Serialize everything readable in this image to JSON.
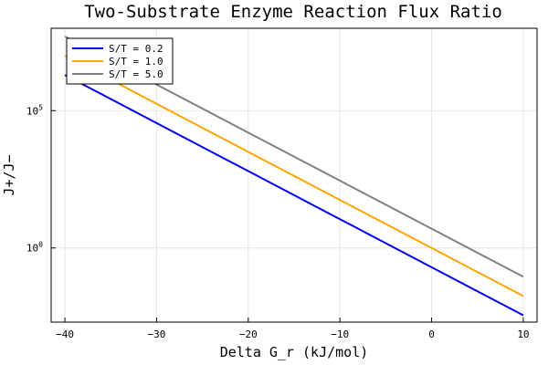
{
  "chart_data": {
    "type": "line",
    "title": "Two-Substrate Enzyme Reaction Flux Ratio",
    "xlabel": "Delta G_r (kJ/mol)",
    "ylabel": "J+/J−",
    "xlim": [
      -41.5,
      11.5
    ],
    "ylog10lim": [
      -2.7,
      8.0
    ],
    "yscale": "log",
    "grid": true,
    "legend_position": "top-left",
    "x_ticks": [
      {
        "value": -40,
        "label": "−40"
      },
      {
        "value": -30,
        "label": "−30"
      },
      {
        "value": -20,
        "label": "−20"
      },
      {
        "value": -10,
        "label": "−10"
      },
      {
        "value": 0,
        "label": "0"
      },
      {
        "value": 10,
        "label": "10"
      }
    ],
    "y_ticks": [
      {
        "log10": 0,
        "base": "10",
        "exp": "0"
      },
      {
        "log10": 5,
        "base": "10",
        "exp": "5"
      }
    ],
    "x": [
      -40,
      10
    ],
    "series": [
      {
        "name": "S/T = 0.2",
        "color": "#0000ee",
        "log10_y": [
          6.3,
          -2.45
        ]
      },
      {
        "name": "S/T = 1.0",
        "color": "#ffa500",
        "log10_y": [
          7.0,
          -1.75
        ]
      },
      {
        "name": "S/T = 5.0",
        "color": "#808080",
        "log10_y": [
          7.7,
          -1.05
        ]
      }
    ]
  }
}
